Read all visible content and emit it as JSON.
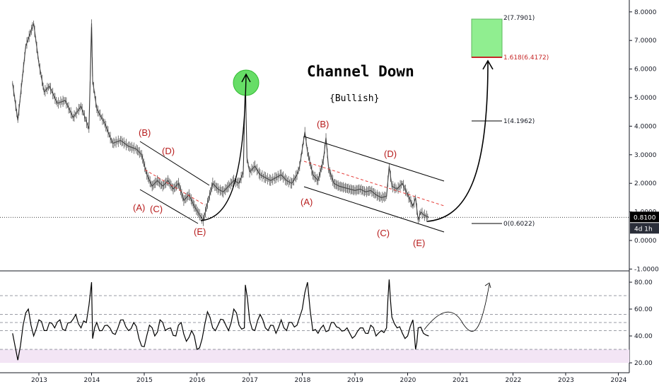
{
  "chart_data": [
    {
      "type": "line",
      "title": "Channel Down",
      "subtitle": "{Bullish}",
      "x_ticks": [
        "2013",
        "2014",
        "2015",
        "2016",
        "2017",
        "2018",
        "2019",
        "2020",
        "2021",
        "2022",
        "2023",
        "2024"
      ],
      "y_ticks": [
        "8.0000",
        "7.0000",
        "6.0000",
        "5.0000",
        "4.0000",
        "3.0000",
        "2.0000",
        "1.0000",
        "0.0000",
        "-1.0000"
      ],
      "ylim": [
        -1,
        8.4
      ],
      "price_badge": "0.8100",
      "timer_badge": "4d 1h",
      "accent_color": "#c62828",
      "target_box_color": "#90ee90",
      "series": [
        {
          "values_x": [
            2012.5,
            2012.6,
            2012.75,
            2012.9,
            2013.0,
            2013.1,
            2013.2,
            2013.35,
            2013.5,
            2013.65,
            2013.8,
            2013.95,
            2014.0,
            2014.02,
            2014.1,
            2014.25,
            2014.4,
            2014.55,
            2014.7,
            2014.85,
            2014.95,
            2015.05,
            2015.15,
            2015.25,
            2015.35,
            2015.45,
            2015.55,
            2015.65,
            2015.75,
            2015.85,
            2015.95,
            2016.05,
            2016.12,
            2016.2,
            2016.3,
            2016.4,
            2016.5,
            2016.6,
            2016.7,
            2016.8,
            2016.88,
            2016.92,
            2016.95,
            2017.0,
            2017.1,
            2017.2,
            2017.3,
            2017.4,
            2017.5,
            2017.6,
            2017.7,
            2017.8,
            2017.9,
            2017.95,
            2018.0,
            2018.05,
            2018.1,
            2018.2,
            2018.3,
            2018.4,
            2018.45,
            2018.5,
            2018.6,
            2018.7,
            2018.8,
            2018.9,
            2019.0,
            2019.1,
            2019.2,
            2019.3,
            2019.4,
            2019.5,
            2019.6,
            2019.65,
            2019.7,
            2019.8,
            2019.9,
            2020.0,
            2020.1,
            2020.15,
            2020.2,
            2020.25,
            2020.3,
            2020.4
          ],
          "values_y": [
            5.5,
            4.2,
            6.8,
            7.6,
            6.2,
            5.2,
            5.4,
            4.8,
            4.9,
            4.3,
            4.7,
            3.9,
            7.6,
            5.6,
            4.6,
            4.1,
            3.4,
            3.5,
            3.3,
            3.2,
            3.0,
            2.3,
            1.9,
            2.1,
            1.9,
            2.1,
            1.8,
            2.0,
            1.4,
            1.6,
            1.2,
            0.9,
            0.7,
            1.3,
            2.0,
            1.8,
            1.7,
            1.9,
            2.1,
            2.0,
            2.4,
            5.7,
            2.9,
            2.4,
            2.6,
            2.3,
            2.2,
            2.1,
            2.2,
            2.3,
            2.1,
            2.0,
            2.3,
            2.6,
            3.2,
            3.8,
            3.1,
            2.3,
            2.1,
            2.8,
            3.6,
            2.5,
            2.0,
            1.9,
            1.85,
            1.8,
            1.75,
            1.8,
            1.7,
            1.75,
            1.6,
            1.5,
            1.55,
            2.6,
            1.9,
            1.8,
            2.0,
            1.6,
            1.2,
            1.5,
            0.7,
            1.0,
            0.9,
            0.81
          ]
        }
      ],
      "wave_labels": [
        "(A)",
        "(B)",
        "(C)",
        "(D)",
        "(E)",
        "(A)",
        "(B)",
        "(C)",
        "(D)",
        "(E)"
      ],
      "fib_levels": [
        {
          "label": "2(7.7901)",
          "value": 7.7901
        },
        {
          "label": "1.618(6.4172)",
          "value": 6.4172
        },
        {
          "label": "1(4.1962)",
          "value": 4.1962
        },
        {
          "label": "0(0.6022)",
          "value": 0.6022
        }
      ]
    },
    {
      "type": "line",
      "title": "",
      "y_ticks": [
        "80.00",
        "60.00",
        "40.00",
        "20.00"
      ],
      "ylim": [
        16,
        84
      ],
      "levels": [
        70,
        56,
        50,
        44,
        30
      ],
      "oversold_band": [
        20,
        30
      ],
      "series": [
        {
          "values_x": [
            2012.5,
            2012.6,
            2012.7,
            2012.8,
            2012.9,
            2013.0,
            2013.1,
            2013.2,
            2013.3,
            2013.4,
            2013.5,
            2013.6,
            2013.7,
            2013.8,
            2013.9,
            2014.0,
            2014.02,
            2014.1,
            2014.2,
            2014.3,
            2014.4,
            2014.5,
            2014.6,
            2014.7,
            2014.8,
            2014.9,
            2015.0,
            2015.1,
            2015.2,
            2015.3,
            2015.4,
            2015.5,
            2015.6,
            2015.7,
            2015.8,
            2015.9,
            2016.0,
            2016.1,
            2016.2,
            2016.3,
            2016.4,
            2016.5,
            2016.6,
            2016.7,
            2016.8,
            2016.9,
            2016.92,
            2017.0,
            2017.1,
            2017.2,
            2017.3,
            2017.4,
            2017.5,
            2017.6,
            2017.7,
            2017.8,
            2017.9,
            2018.0,
            2018.1,
            2018.2,
            2018.3,
            2018.4,
            2018.5,
            2018.6,
            2018.7,
            2018.8,
            2018.9,
            2019.0,
            2019.1,
            2019.2,
            2019.3,
            2019.4,
            2019.5,
            2019.6,
            2019.65,
            2019.7,
            2019.8,
            2019.9,
            2020.0,
            2020.1,
            2020.15,
            2020.2,
            2020.3,
            2020.4
          ],
          "values_y": [
            42,
            22,
            48,
            60,
            40,
            52,
            44,
            50,
            46,
            52,
            44,
            50,
            56,
            46,
            50,
            80,
            38,
            50,
            44,
            48,
            42,
            46,
            52,
            44,
            50,
            38,
            32,
            48,
            40,
            52,
            44,
            46,
            40,
            50,
            36,
            44,
            30,
            38,
            58,
            46,
            48,
            52,
            44,
            60,
            48,
            46,
            78,
            52,
            44,
            56,
            46,
            48,
            42,
            52,
            44,
            50,
            48,
            60,
            80,
            44,
            42,
            48,
            44,
            50,
            46,
            44,
            42,
            40,
            46,
            42,
            48,
            40,
            44,
            46,
            82,
            54,
            46,
            42,
            40,
            52,
            30,
            46,
            42,
            40
          ]
        }
      ]
    }
  ]
}
